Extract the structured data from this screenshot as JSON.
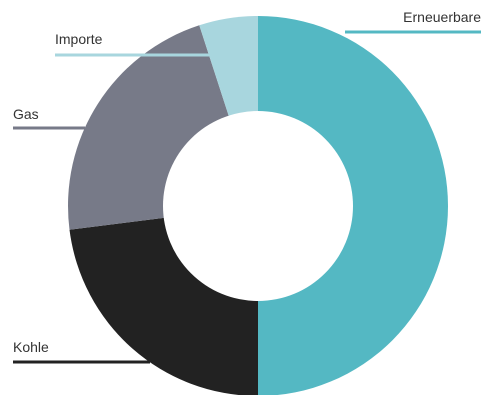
{
  "chart_data": {
    "type": "pie",
    "variant": "donut",
    "categories": [
      "Erneuerbare",
      "Kohle",
      "Gas",
      "Importe"
    ],
    "values": [
      50,
      23,
      22,
      5
    ],
    "unit": "%",
    "colors": [
      "#54b8c3",
      "#222222",
      "#777a88",
      "#a8d6de"
    ],
    "start": "top",
    "direction": "clockwise",
    "title": "",
    "legend": "none",
    "labels_position": "outside with leader lines"
  }
}
